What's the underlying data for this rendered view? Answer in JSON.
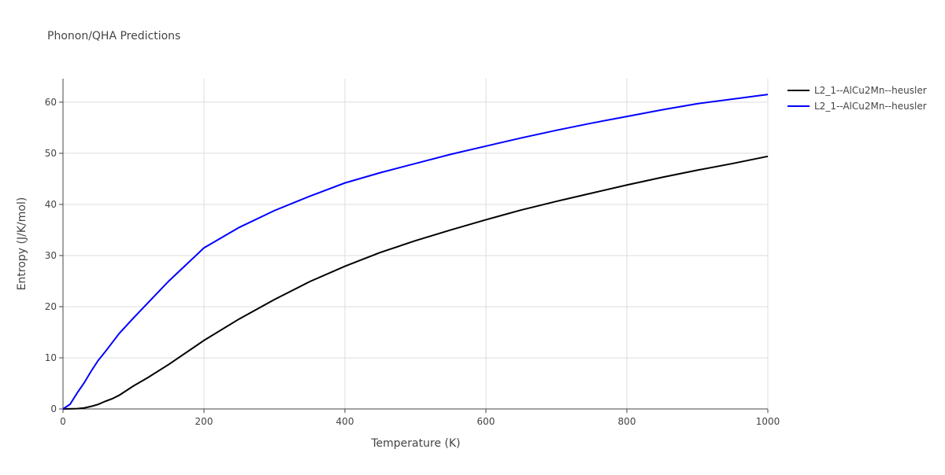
{
  "chart_data": {
    "type": "line",
    "title": "Phonon/QHA Predictions",
    "x_label": "Temperature (K)",
    "y_label": "Entropy (J/K/mol)",
    "xlim": [
      0,
      1000
    ],
    "xticks": [
      0,
      200,
      400,
      600,
      800,
      1000
    ],
    "ylim": [
      0,
      64.6
    ],
    "yticks": [
      0,
      10,
      20,
      30,
      40,
      50,
      60
    ],
    "grid": true,
    "legend": "right",
    "series": [
      {
        "name": "L2_1--AlCu2Mn--heusler",
        "color": "#000000",
        "x": [
          0,
          20,
          30,
          40,
          50,
          60,
          70,
          80,
          100,
          120,
          150,
          200,
          250,
          300,
          350,
          400,
          450,
          500,
          550,
          600,
          650,
          700,
          750,
          800,
          850,
          900,
          950,
          1000
        ],
        "values": [
          0,
          0.05,
          0.2,
          0.5,
          0.9,
          1.5,
          2.0,
          2.7,
          4.5,
          6.1,
          8.7,
          13.4,
          17.6,
          21.4,
          24.9,
          27.9,
          30.6,
          32.9,
          35.0,
          37.0,
          38.9,
          40.6,
          42.2,
          43.8,
          45.3,
          46.7,
          48.0,
          49.4
        ]
      },
      {
        "name": "L2_1--AlCu2Mn--heusler",
        "color": "#0000ff",
        "x": [
          0,
          10,
          20,
          30,
          40,
          50,
          60,
          80,
          100,
          150,
          200,
          250,
          300,
          350,
          400,
          450,
          500,
          550,
          600,
          650,
          700,
          750,
          800,
          850,
          900,
          950,
          1000
        ],
        "values": [
          0,
          0.9,
          3.1,
          5.1,
          7.4,
          9.5,
          11.2,
          14.8,
          17.8,
          25.0,
          31.5,
          35.5,
          38.8,
          41.6,
          44.2,
          46.2,
          48.0,
          49.8,
          51.4,
          53.0,
          54.5,
          55.9,
          57.2,
          58.5,
          59.7,
          60.6,
          61.5
        ]
      }
    ]
  }
}
